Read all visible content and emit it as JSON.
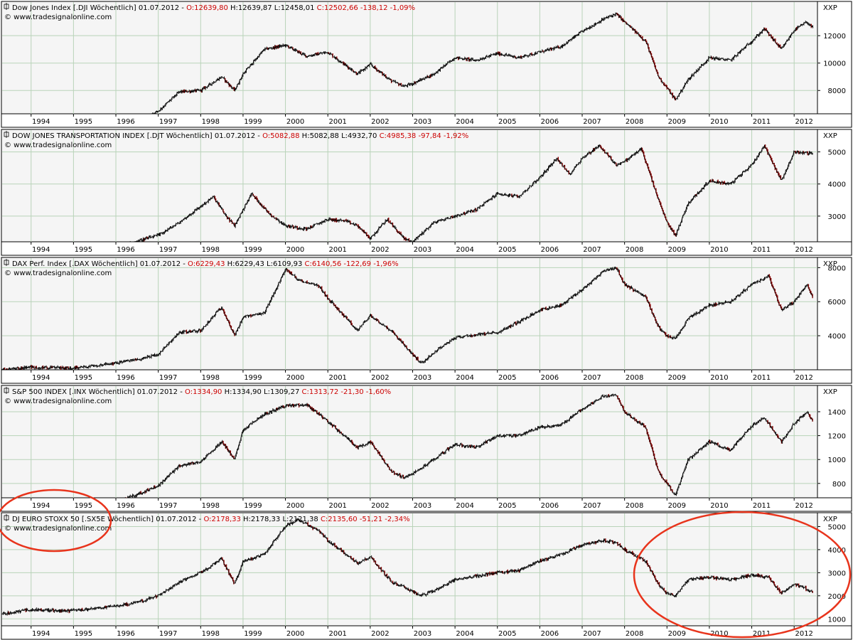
{
  "colors": {
    "plot_bg": "#f5f5f5",
    "grid": "#b9d3b9",
    "candle": "#000000",
    "down_candle": "#8b0000",
    "header_red": "#cc0000",
    "annotation": "#e8341c"
  },
  "chart_data": [
    {
      "type": "line",
      "header_name": "Dow Jones Index [.DJI  Wöchentlich] 01.07.2012 - ",
      "header_open": "O:12639,80",
      "header_mid": " H:12639,87 L:12458,01 ",
      "header_close": "C:12502,66 -138,12 -1,09%",
      "source": "© www.tradesignalonline.com",
      "unit": "XXP",
      "ylim": [
        6300,
        14500
      ],
      "yticks": [
        8000,
        10000,
        12000
      ],
      "ytick_labels": [
        "8000",
        "10000",
        "12000"
      ],
      "xlim": [
        1993.3,
        2012.55
      ],
      "years": [
        "1994",
        "1995",
        "1996",
        "1997",
        "1998",
        "1999",
        "2000",
        "2001",
        "2002",
        "2003",
        "2004",
        "2005",
        "2006",
        "2007",
        "2008",
        "2009",
        "2010",
        "2011",
        "2012"
      ],
      "x": [
        1996.0,
        1996.5,
        1997.0,
        1997.5,
        1998.0,
        1998.5,
        1998.8,
        1999.0,
        1999.5,
        2000.0,
        2000.5,
        2001.0,
        2001.7,
        2002.0,
        2002.5,
        2002.8,
        2003.0,
        2003.5,
        2004.0,
        2004.5,
        2005.0,
        2005.5,
        2006.0,
        2006.5,
        2007.0,
        2007.5,
        2007.8,
        2008.0,
        2008.5,
        2008.8,
        2009.0,
        2009.2,
        2009.5,
        2010.0,
        2010.5,
        2011.0,
        2011.3,
        2011.7,
        2012.0,
        2012.3,
        2012.45
      ],
      "y": [
        5200,
        5800,
        6500,
        7900,
        8000,
        9000,
        8000,
        9200,
        11000,
        11300,
        10500,
        10800,
        9200,
        9900,
        8700,
        8300,
        8500,
        9200,
        10400,
        10200,
        10700,
        10400,
        10800,
        11200,
        12300,
        13200,
        13600,
        13000,
        11600,
        9000,
        8200,
        7300,
        8800,
        10400,
        10200,
        11600,
        12500,
        11000,
        12400,
        13000,
        12500
      ]
    },
    {
      "type": "line",
      "header_name": "DOW JONES TRANSPORTATION INDEX [.DJT  Wöchentlich] 01.07.2012 - ",
      "header_open": "O:5082,88",
      "header_mid": " H:5082,88 L:4932,70 ",
      "header_close": "C:4985,38 -97,84 -1,92%",
      "source": "© www.tradesignalonline.com",
      "unit": "XXP",
      "ylim": [
        2200,
        5700
      ],
      "yticks": [
        3000,
        4000,
        5000
      ],
      "ytick_labels": [
        "3000",
        "4000",
        "5000"
      ],
      "xlim": [
        1993.3,
        2012.55
      ],
      "years": [
        "1994",
        "1995",
        "1996",
        "1997",
        "1998",
        "1999",
        "2000",
        "2001",
        "2002",
        "2003",
        "2004",
        "2005",
        "2006",
        "2007",
        "2008",
        "2009",
        "2010",
        "2011",
        "2012"
      ],
      "x": [
        1995.8,
        1996.3,
        1997.0,
        1997.5,
        1998.0,
        1998.3,
        1998.6,
        1998.8,
        1999.2,
        1999.6,
        2000.0,
        2000.5,
        2001.0,
        2001.4,
        2001.7,
        2002.0,
        2002.4,
        2002.8,
        2003.0,
        2003.5,
        2004.0,
        2004.5,
        2005.0,
        2005.5,
        2006.0,
        2006.4,
        2006.7,
        2007.0,
        2007.4,
        2007.8,
        2008.0,
        2008.4,
        2008.8,
        2009.0,
        2009.2,
        2009.5,
        2010.0,
        2010.5,
        2011.0,
        2011.3,
        2011.7,
        2012.0,
        2012.45
      ],
      "y": [
        2000,
        2150,
        2400,
        2800,
        3300,
        3600,
        3000,
        2700,
        3700,
        3100,
        2700,
        2600,
        2900,
        2850,
        2700,
        2300,
        2900,
        2300,
        2200,
        2800,
        3000,
        3200,
        3700,
        3600,
        4200,
        4800,
        4300,
        4800,
        5200,
        4600,
        4700,
        5100,
        3500,
        2800,
        2400,
        3400,
        4100,
        4000,
        4600,
        5200,
        4100,
        5000,
        4950
      ]
    },
    {
      "type": "line",
      "header_name": "DAX Perf. Index [.DAX  Wöchentlich] 01.07.2012 - ",
      "header_open": "O:6229,43",
      "header_mid": " H:6229,43 L:6109,93 ",
      "header_close": "C:6140,56 -122,69 -1,96%",
      "source": "© www.tradesignalonline.com",
      "unit": "XXP",
      "ylim": [
        2000,
        8600
      ],
      "yticks": [
        4000,
        6000,
        8000
      ],
      "ytick_labels": [
        "4000",
        "6000",
        "8000"
      ],
      "xlim": [
        1993.3,
        2012.55
      ],
      "years": [
        "1994",
        "1995",
        "1996",
        "1997",
        "1998",
        "1999",
        "2000",
        "2001",
        "2002",
        "2003",
        "2004",
        "2005",
        "2006",
        "2007",
        "2008",
        "2009",
        "2010",
        "2011",
        "2012"
      ],
      "x": [
        1993.3,
        1994.0,
        1995.0,
        1996.0,
        1996.5,
        1997.0,
        1997.5,
        1998.0,
        1998.5,
        1998.8,
        1999.0,
        1999.5,
        2000.0,
        2000.3,
        2000.8,
        2001.0,
        2001.7,
        2002.0,
        2002.5,
        2003.0,
        2003.2,
        2003.6,
        2004.0,
        2005.0,
        2005.5,
        2006.0,
        2006.5,
        2007.0,
        2007.5,
        2007.8,
        2008.0,
        2008.5,
        2008.8,
        2009.0,
        2009.2,
        2009.5,
        2010.0,
        2010.5,
        2011.0,
        2011.4,
        2011.7,
        2012.0,
        2012.3,
        2012.45
      ],
      "y": [
        2000,
        2150,
        2100,
        2400,
        2600,
        2900,
        4200,
        4300,
        5700,
        4000,
        5100,
        5300,
        7900,
        7300,
        6900,
        6200,
        4300,
        5200,
        4300,
        2900,
        2400,
        3200,
        3900,
        4200,
        4800,
        5500,
        5800,
        6700,
        7800,
        8000,
        7000,
        6300,
        4500,
        4000,
        3800,
        5000,
        5800,
        6000,
        7000,
        7500,
        5500,
        6000,
        7000,
        6150
      ]
    },
    {
      "type": "line",
      "header_name": "S&P 500 INDEX [.INX  Wöchentlich] 01.07.2012 - ",
      "header_open": "O:1334,90",
      "header_mid": " H:1334,90 L:1309,27 ",
      "header_close": "C:1313,72 -21,30 -1,60%",
      "source": "© www.tradesignalonline.com",
      "unit": "XXP",
      "ylim": [
        680,
        1620
      ],
      "yticks": [
        800,
        1000,
        1200,
        1400
      ],
      "ytick_labels": [
        "800",
        "1000",
        "1200",
        "1400"
      ],
      "xlim": [
        1993.3,
        2012.55
      ],
      "years": [
        "1994",
        "1995",
        "1996",
        "1997",
        "1998",
        "1999",
        "2000",
        "2001",
        "2002",
        "2003",
        "2004",
        "2005",
        "2006",
        "2007",
        "2008",
        "2009",
        "2010",
        "2011",
        "2012"
      ],
      "x": [
        1995.8,
        1996.3,
        1997.0,
        1997.5,
        1998.0,
        1998.5,
        1998.8,
        1999.0,
        1999.5,
        2000.0,
        2000.5,
        2001.0,
        2001.7,
        2002.0,
        2002.5,
        2002.8,
        2003.0,
        2003.5,
        2004.0,
        2004.5,
        2005.0,
        2005.5,
        2006.0,
        2006.5,
        2007.0,
        2007.5,
        2007.8,
        2008.0,
        2008.5,
        2008.8,
        2009.0,
        2009.2,
        2009.5,
        2010.0,
        2010.5,
        2011.0,
        2011.3,
        2011.7,
        2012.0,
        2012.3,
        2012.45
      ],
      "y": [
        610,
        680,
        780,
        950,
        980,
        1150,
        1000,
        1250,
        1380,
        1450,
        1460,
        1320,
        1100,
        1150,
        900,
        850,
        880,
        1000,
        1130,
        1100,
        1200,
        1200,
        1270,
        1290,
        1420,
        1530,
        1540,
        1400,
        1270,
        900,
        800,
        700,
        1000,
        1150,
        1080,
        1280,
        1350,
        1150,
        1300,
        1400,
        1315
      ]
    },
    {
      "type": "line",
      "header_name": "DJ EURO STOXX 50 [.SX5E  Wöchentlich] 01.07.2012 - ",
      "header_open": "O:2178,33",
      "header_mid": " H:2178,33 L:2121,38 ",
      "header_close": "C:2135,60 -51,21 -2,34%",
      "source": "© www.tradesignalonline.com",
      "unit": "XXP",
      "ylim": [
        700,
        5600
      ],
      "yticks": [
        1000,
        2000,
        3000,
        4000,
        5000
      ],
      "ytick_labels": [
        "1000",
        "2000",
        "3000",
        "4000",
        "5000"
      ],
      "xlim": [
        1993.3,
        2012.55
      ],
      "years": [
        "1994",
        "1995",
        "1996",
        "1997",
        "1998",
        "1999",
        "2000",
        "2001",
        "2002",
        "2003",
        "2004",
        "2005",
        "2006",
        "2007",
        "2008",
        "2009",
        "2010",
        "2011",
        "2012"
      ],
      "x": [
        1993.3,
        1994.0,
        1995.0,
        1996.0,
        1996.5,
        1997.0,
        1997.5,
        1998.0,
        1998.5,
        1998.8,
        1999.0,
        1999.5,
        2000.0,
        2000.3,
        2000.8,
        2001.0,
        2001.7,
        2002.0,
        2002.5,
        2003.0,
        2003.2,
        2003.6,
        2004.0,
        2005.0,
        2005.5,
        2006.0,
        2006.5,
        2007.0,
        2007.5,
        2007.8,
        2008.0,
        2008.5,
        2008.8,
        2009.0,
        2009.2,
        2009.5,
        2010.0,
        2010.5,
        2011.0,
        2011.4,
        2011.7,
        2012.0,
        2012.3,
        2012.45
      ],
      "y": [
        1200,
        1400,
        1350,
        1550,
        1700,
        2000,
        2600,
        3000,
        3600,
        2500,
        3500,
        3800,
        5000,
        5300,
        4800,
        4400,
        3400,
        3700,
        2600,
        2200,
        2000,
        2300,
        2700,
        3000,
        3100,
        3500,
        3800,
        4200,
        4400,
        4300,
        4000,
        3500,
        2500,
        2100,
        2000,
        2700,
        2800,
        2700,
        2900,
        2800,
        2100,
        2500,
        2300,
        2135
      ]
    }
  ]
}
